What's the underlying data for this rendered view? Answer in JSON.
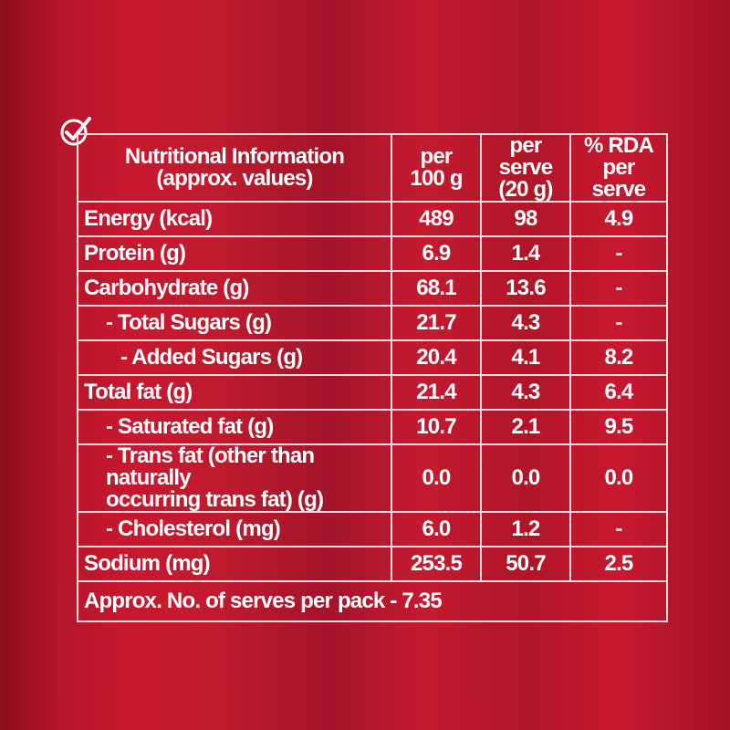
{
  "header": {
    "title_line1": "Nutritional Information",
    "title_line2": "(approx. values)",
    "col_per100_line1": "per",
    "col_per100_line2": "100 g",
    "col_serve_line1": "per serve",
    "col_serve_line2": "(20 g)",
    "col_rda_line1": "% RDA",
    "col_rda_line2": "per serve"
  },
  "rows": [
    {
      "label": "Energy (kcal)",
      "per100": "489",
      "serve": "98",
      "rda": "4.9"
    },
    {
      "label": "Protein (g)",
      "per100": "6.9",
      "serve": "1.4",
      "rda": "-"
    },
    {
      "label": "Carbohydrate (g)",
      "per100": "68.1",
      "serve": "13.6",
      "rda": "-"
    },
    {
      "label": "- Total Sugars (g)",
      "per100": "21.7",
      "serve": "4.3",
      "rda": "-"
    },
    {
      "label": "- Added Sugars (g)",
      "per100": "20.4",
      "serve": "4.1",
      "rda": "8.2"
    },
    {
      "label": "Total fat (g)",
      "per100": "21.4",
      "serve": "4.3",
      "rda": "6.4"
    },
    {
      "label": "- Saturated fat (g)",
      "per100": "10.7",
      "serve": "2.1",
      "rda": "9.5"
    },
    {
      "label_line1": "- Trans fat (other than naturally",
      "label_line2": "occurring trans fat) (g)",
      "per100": "0.0",
      "serve": "0.0",
      "rda": "0.0"
    },
    {
      "label": "- Cholesterol (mg)",
      "per100": "6.0",
      "serve": "1.2",
      "rda": "-"
    },
    {
      "label": "Sodium (mg)",
      "per100": "253.5",
      "serve": "50.7",
      "rda": "2.5"
    }
  ],
  "footer": "Approx. No. of serves per pack - 7.35",
  "colors": {
    "background": "#b5152a",
    "text": "#ffffff",
    "border": "#f3d9dc"
  },
  "icon": "checkmark-badge-icon"
}
